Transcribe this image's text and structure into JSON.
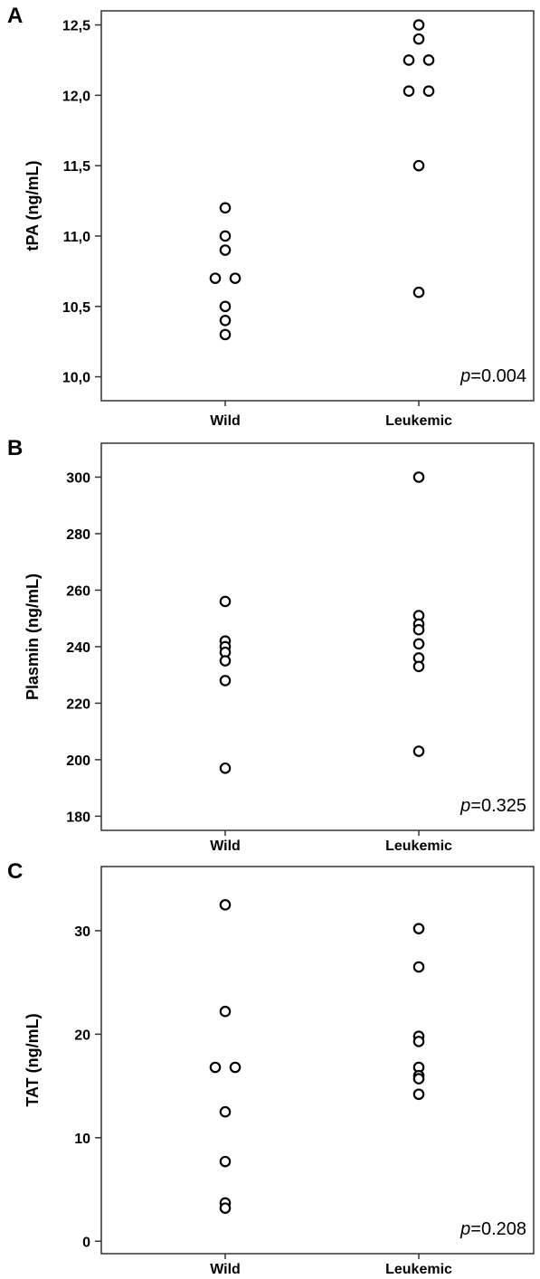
{
  "chart_data": [
    {
      "panel": "A",
      "type": "scatter",
      "ylabel": "tPA (ng/mL)",
      "categories": [
        "Wild",
        "Leukemic"
      ],
      "y_ticks": [
        "10,0",
        "10,5",
        "11,0",
        "11,5",
        "12,0",
        "12,5"
      ],
      "y_tick_values": [
        10.0,
        10.5,
        11.0,
        11.5,
        12.0,
        12.5
      ],
      "ylim": [
        9.83,
        12.6
      ],
      "annotation": {
        "italic": "p",
        "text": "=0.004"
      },
      "points": [
        {
          "group": "Wild",
          "y": 11.2,
          "offset": 0
        },
        {
          "group": "Wild",
          "y": 11.0,
          "offset": 0
        },
        {
          "group": "Wild",
          "y": 10.9,
          "offset": 0
        },
        {
          "group": "Wild",
          "y": 10.7,
          "offset": -1
        },
        {
          "group": "Wild",
          "y": 10.7,
          "offset": 1
        },
        {
          "group": "Wild",
          "y": 10.5,
          "offset": 0
        },
        {
          "group": "Wild",
          "y": 10.4,
          "offset": 0
        },
        {
          "group": "Wild",
          "y": 10.3,
          "offset": 0
        },
        {
          "group": "Leukemic",
          "y": 12.5,
          "offset": 0
        },
        {
          "group": "Leukemic",
          "y": 12.4,
          "offset": 0
        },
        {
          "group": "Leukemic",
          "y": 12.25,
          "offset": -1
        },
        {
          "group": "Leukemic",
          "y": 12.25,
          "offset": 1
        },
        {
          "group": "Leukemic",
          "y": 12.03,
          "offset": -1
        },
        {
          "group": "Leukemic",
          "y": 12.03,
          "offset": 1
        },
        {
          "group": "Leukemic",
          "y": 11.5,
          "offset": 0
        },
        {
          "group": "Leukemic",
          "y": 10.6,
          "offset": 0
        }
      ]
    },
    {
      "panel": "B",
      "type": "scatter",
      "ylabel": "Plasmin (ng/mL)",
      "categories": [
        "Wild",
        "Leukemic"
      ],
      "y_ticks": [
        "180",
        "200",
        "220",
        "240",
        "260",
        "280",
        "300"
      ],
      "y_tick_values": [
        180,
        200,
        220,
        240,
        260,
        280,
        300
      ],
      "ylim": [
        175,
        312
      ],
      "annotation": {
        "italic": "p",
        "text": "=0.325"
      },
      "points": [
        {
          "group": "Wild",
          "y": 256,
          "offset": 0
        },
        {
          "group": "Wild",
          "y": 242,
          "offset": 0
        },
        {
          "group": "Wild",
          "y": 240,
          "offset": 0
        },
        {
          "group": "Wild",
          "y": 238,
          "offset": 0
        },
        {
          "group": "Wild",
          "y": 235,
          "offset": 0
        },
        {
          "group": "Wild",
          "y": 228,
          "offset": 0
        },
        {
          "group": "Wild",
          "y": 197,
          "offset": 0
        },
        {
          "group": "Leukemic",
          "y": 300,
          "offset": 0
        },
        {
          "group": "Leukemic",
          "y": 251,
          "offset": 0
        },
        {
          "group": "Leukemic",
          "y": 248,
          "offset": 0
        },
        {
          "group": "Leukemic",
          "y": 246,
          "offset": 0
        },
        {
          "group": "Leukemic",
          "y": 241,
          "offset": 0
        },
        {
          "group": "Leukemic",
          "y": 236,
          "offset": 0
        },
        {
          "group": "Leukemic",
          "y": 233,
          "offset": 0
        },
        {
          "group": "Leukemic",
          "y": 203,
          "offset": 0
        }
      ]
    },
    {
      "panel": "C",
      "type": "scatter",
      "ylabel": "TAT (ng/mL)",
      "categories": [
        "Wild",
        "Leukemic"
      ],
      "y_ticks": [
        "0",
        "10",
        "20",
        "30"
      ],
      "y_tick_values": [
        0,
        10,
        20,
        30
      ],
      "ylim": [
        -1.2,
        36.2
      ],
      "annotation": {
        "italic": "p",
        "text": "=0.208"
      },
      "points": [
        {
          "group": "Wild",
          "y": 32.5,
          "offset": 0
        },
        {
          "group": "Wild",
          "y": 22.2,
          "offset": 0
        },
        {
          "group": "Wild",
          "y": 16.8,
          "offset": -1
        },
        {
          "group": "Wild",
          "y": 16.8,
          "offset": 1
        },
        {
          "group": "Wild",
          "y": 12.5,
          "offset": 0
        },
        {
          "group": "Wild",
          "y": 7.7,
          "offset": 0
        },
        {
          "group": "Wild",
          "y": 3.7,
          "offset": 0
        },
        {
          "group": "Wild",
          "y": 3.2,
          "offset": 0
        },
        {
          "group": "Leukemic",
          "y": 30.2,
          "offset": 0
        },
        {
          "group": "Leukemic",
          "y": 26.5,
          "offset": 0
        },
        {
          "group": "Leukemic",
          "y": 19.8,
          "offset": 0
        },
        {
          "group": "Leukemic",
          "y": 19.3,
          "offset": 0
        },
        {
          "group": "Leukemic",
          "y": 16.8,
          "offset": 0
        },
        {
          "group": "Leukemic",
          "y": 16.0,
          "offset": 0
        },
        {
          "group": "Leukemic",
          "y": 15.7,
          "offset": 0
        },
        {
          "group": "Leukemic",
          "y": 14.2,
          "offset": 0
        }
      ]
    }
  ]
}
